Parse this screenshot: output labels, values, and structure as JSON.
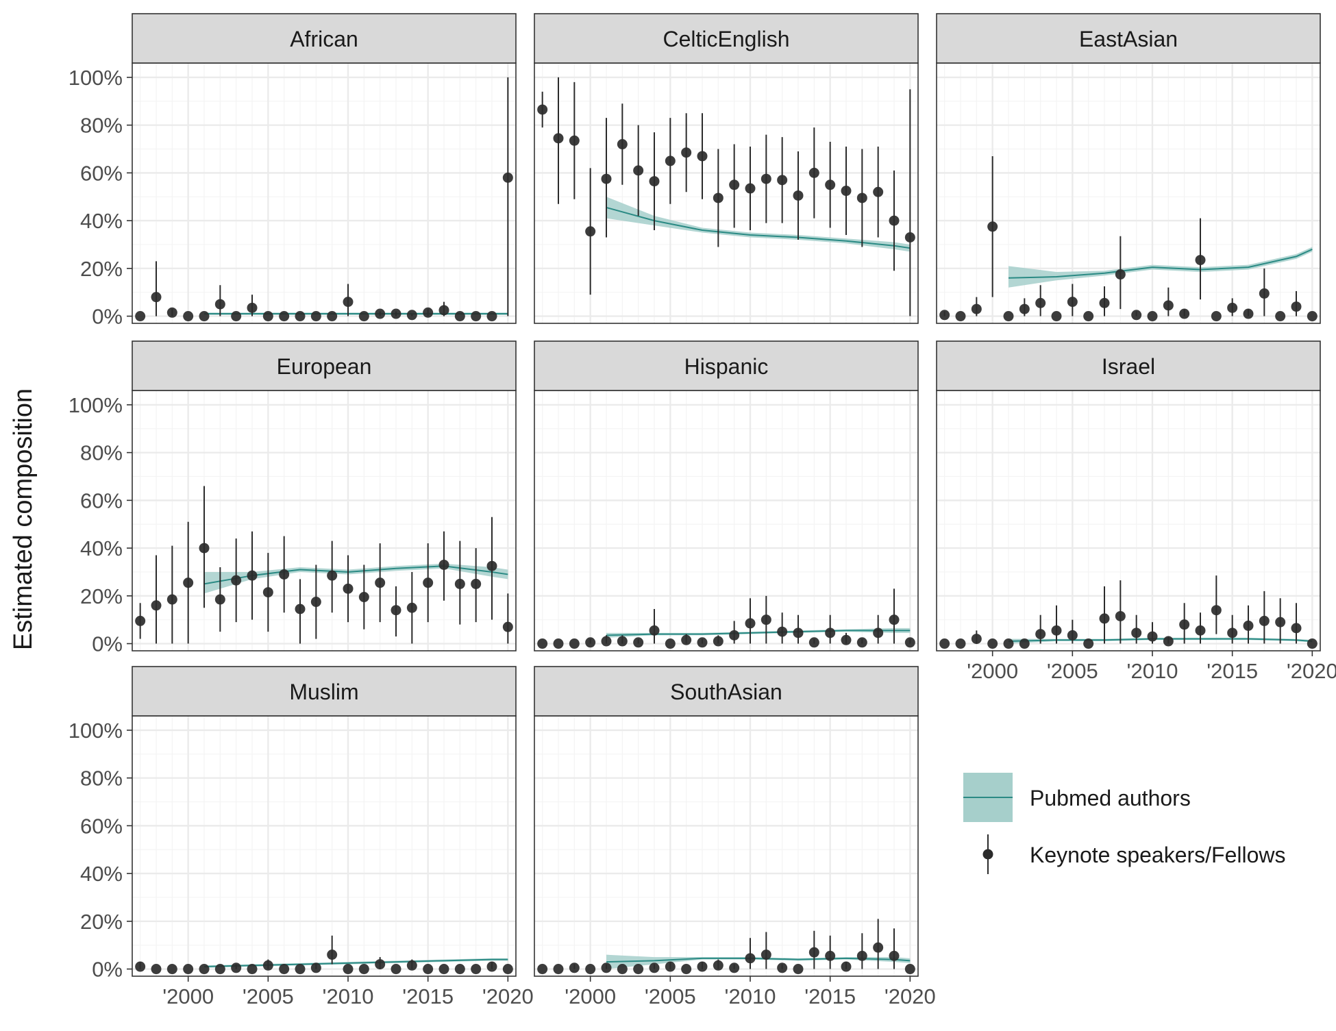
{
  "chart_data": {
    "type": "scatter",
    "ylabel": "Estimated composition",
    "xlabel": "",
    "ylim": [
      0,
      1
    ],
    "xlim": [
      1996.5,
      2020.5
    ],
    "x_ticks": [
      2000,
      2005,
      2010,
      2015,
      2020
    ],
    "x_tick_labels": [
      "'2000",
      "'2005",
      "'2010",
      "'2015",
      "'2020"
    ],
    "y_ticks": [
      0,
      0.2,
      0.4,
      0.6,
      0.8,
      1.0
    ],
    "y_tick_labels": [
      "0%",
      "20%",
      "40%",
      "60%",
      "80%",
      "100%"
    ],
    "grid": true,
    "legend": {
      "placement": "bottom-right",
      "items": [
        {
          "label": "Pubmed authors",
          "kind": "ribbon-line",
          "fill": "#a6cfcb",
          "line": "#2a8a84"
        },
        {
          "label": "Keynote speakers/Fellows",
          "kind": "point-range",
          "color": "#2b2b2b"
        }
      ]
    },
    "colors": {
      "ribbon": "#a6cfcb",
      "trend": "#2a8a84",
      "point": "#2b2b2b",
      "strip": "#d9d9d9",
      "grid": "#ebebeb",
      "border": "#333333"
    },
    "years": [
      1997,
      1998,
      1999,
      2000,
      2001,
      2002,
      2003,
      2004,
      2005,
      2006,
      2007,
      2008,
      2009,
      2010,
      2011,
      2012,
      2013,
      2014,
      2015,
      2016,
      2017,
      2018,
      2019,
      2020
    ],
    "trend_years": [
      2001,
      2004,
      2007,
      2010,
      2013,
      2016,
      2019,
      2020
    ],
    "facets": [
      {
        "name": "African",
        "points": [
          0.0,
          0.08,
          0.015,
          0.0,
          0.0,
          0.05,
          0.0,
          0.035,
          0.0,
          0.0,
          0.0,
          0.0,
          0.0,
          0.06,
          0.0,
          0.01,
          0.01,
          0.005,
          0.015,
          0.025,
          0.0,
          0.0,
          0.0,
          0.58
        ],
        "lower": [
          0.0,
          0.0,
          0.0,
          0.0,
          0.0,
          0.0,
          0.0,
          0.0,
          0.0,
          0.0,
          0.0,
          0.0,
          0.0,
          0.0,
          0.0,
          0.0,
          0.0,
          0.0,
          0.0,
          0.0,
          0.0,
          0.0,
          0.0,
          0.0
        ],
        "upper": [
          0.0,
          0.23,
          0.03,
          0.0,
          0.0,
          0.13,
          0.0,
          0.09,
          0.0,
          0.0,
          0.0,
          0.0,
          0.0,
          0.135,
          0.0,
          0.02,
          0.02,
          0.01,
          0.03,
          0.06,
          0.0,
          0.0,
          0.0,
          1.0
        ],
        "trend": [
          0.01,
          0.01,
          0.01,
          0.01,
          0.01,
          0.01,
          0.01,
          0.01
        ],
        "trend_lo": [
          0.005,
          0.005,
          0.005,
          0.005,
          0.005,
          0.005,
          0.005,
          0.005
        ],
        "trend_hi": [
          0.015,
          0.015,
          0.015,
          0.015,
          0.015,
          0.015,
          0.015,
          0.015
        ]
      },
      {
        "name": "CelticEnglish",
        "points": [
          0.865,
          0.745,
          0.735,
          0.355,
          0.575,
          0.72,
          0.61,
          0.565,
          0.65,
          0.685,
          0.67,
          0.495,
          0.55,
          0.535,
          0.575,
          0.57,
          0.505,
          0.6,
          0.55,
          0.525,
          0.495,
          0.52,
          0.4,
          0.33
        ],
        "lower": [
          0.79,
          0.47,
          0.49,
          0.09,
          0.33,
          0.55,
          0.42,
          0.36,
          0.47,
          0.52,
          0.49,
          0.29,
          0.37,
          0.36,
          0.39,
          0.39,
          0.32,
          0.41,
          0.37,
          0.34,
          0.29,
          0.33,
          0.19,
          0.0
        ],
        "upper": [
          0.94,
          1.0,
          0.98,
          0.62,
          0.83,
          0.89,
          0.8,
          0.77,
          0.83,
          0.85,
          0.85,
          0.7,
          0.72,
          0.71,
          0.76,
          0.75,
          0.69,
          0.79,
          0.73,
          0.71,
          0.7,
          0.71,
          0.61,
          0.95
        ],
        "trend": [
          0.455,
          0.4,
          0.36,
          0.34,
          0.33,
          0.315,
          0.295,
          0.285
        ],
        "trend_lo": [
          0.41,
          0.38,
          0.35,
          0.33,
          0.32,
          0.305,
          0.28,
          0.27
        ],
        "trend_hi": [
          0.5,
          0.42,
          0.37,
          0.35,
          0.34,
          0.325,
          0.31,
          0.3
        ]
      },
      {
        "name": "EastAsian",
        "points": [
          0.005,
          0.0,
          0.03,
          0.375,
          0.0,
          0.03,
          0.055,
          0.0,
          0.06,
          0.0,
          0.055,
          0.175,
          0.005,
          0.0,
          0.045,
          0.01,
          0.235,
          0.0,
          0.035,
          0.01,
          0.095,
          0.0,
          0.04,
          0.0
        ],
        "lower": [
          0.0,
          0.0,
          0.0,
          0.08,
          0.0,
          0.0,
          0.0,
          0.0,
          0.0,
          0.0,
          0.0,
          0.03,
          0.0,
          0.0,
          0.0,
          0.0,
          0.07,
          0.0,
          0.0,
          0.0,
          0.0,
          0.0,
          0.0,
          0.0
        ],
        "upper": [
          0.02,
          0.0,
          0.08,
          0.67,
          0.0,
          0.075,
          0.13,
          0.0,
          0.135,
          0.0,
          0.125,
          0.335,
          0.02,
          0.0,
          0.12,
          0.03,
          0.41,
          0.0,
          0.075,
          0.03,
          0.2,
          0.0,
          0.105,
          0.0
        ],
        "trend": [
          0.16,
          0.165,
          0.18,
          0.205,
          0.195,
          0.205,
          0.25,
          0.28
        ],
        "trend_lo": [
          0.12,
          0.15,
          0.17,
          0.195,
          0.185,
          0.195,
          0.24,
          0.27
        ],
        "trend_hi": [
          0.21,
          0.185,
          0.19,
          0.215,
          0.205,
          0.215,
          0.26,
          0.29
        ]
      },
      {
        "name": "European",
        "points": [
          0.095,
          0.16,
          0.185,
          0.255,
          0.4,
          0.185,
          0.265,
          0.285,
          0.215,
          0.29,
          0.145,
          0.175,
          0.285,
          0.23,
          0.195,
          0.255,
          0.14,
          0.15,
          0.255,
          0.33,
          0.25,
          0.25,
          0.325,
          0.07
        ],
        "lower": [
          0.02,
          0.0,
          0.0,
          0.0,
          0.15,
          0.05,
          0.09,
          0.1,
          0.05,
          0.13,
          0.0,
          0.02,
          0.13,
          0.09,
          0.06,
          0.09,
          0.03,
          0.0,
          0.09,
          0.18,
          0.08,
          0.09,
          0.1,
          0.0
        ],
        "upper": [
          0.17,
          0.37,
          0.41,
          0.51,
          0.66,
          0.32,
          0.44,
          0.47,
          0.38,
          0.45,
          0.27,
          0.33,
          0.43,
          0.37,
          0.33,
          0.42,
          0.24,
          0.3,
          0.42,
          0.47,
          0.43,
          0.4,
          0.53,
          0.21
        ],
        "trend": [
          0.25,
          0.285,
          0.31,
          0.3,
          0.315,
          0.325,
          0.3,
          0.29
        ],
        "trend_lo": [
          0.21,
          0.27,
          0.3,
          0.29,
          0.305,
          0.315,
          0.28,
          0.27
        ],
        "trend_hi": [
          0.3,
          0.3,
          0.32,
          0.31,
          0.325,
          0.335,
          0.32,
          0.31
        ]
      },
      {
        "name": "Hispanic",
        "points": [
          0.0,
          0.0,
          0.0,
          0.005,
          0.01,
          0.01,
          0.005,
          0.055,
          0.0,
          0.015,
          0.005,
          0.01,
          0.035,
          0.085,
          0.1,
          0.05,
          0.045,
          0.005,
          0.045,
          0.015,
          0.005,
          0.045,
          0.1,
          0.005
        ],
        "lower": [
          0.0,
          0.0,
          0.0,
          0.0,
          0.0,
          0.0,
          0.0,
          0.0,
          0.0,
          0.0,
          0.0,
          0.0,
          0.0,
          0.0,
          0.0,
          0.0,
          0.0,
          0.0,
          0.0,
          0.0,
          0.0,
          0.0,
          0.0,
          0.0
        ],
        "upper": [
          0.0,
          0.0,
          0.0,
          0.02,
          0.035,
          0.035,
          0.02,
          0.145,
          0.0,
          0.04,
          0.02,
          0.035,
          0.095,
          0.19,
          0.2,
          0.13,
          0.12,
          0.02,
          0.12,
          0.045,
          0.02,
          0.12,
          0.23,
          0.02
        ],
        "trend": [
          0.035,
          0.04,
          0.04,
          0.045,
          0.05,
          0.055,
          0.055,
          0.055
        ],
        "trend_lo": [
          0.025,
          0.035,
          0.035,
          0.04,
          0.045,
          0.05,
          0.045,
          0.045
        ],
        "trend_hi": [
          0.045,
          0.045,
          0.045,
          0.05,
          0.055,
          0.06,
          0.065,
          0.065
        ]
      },
      {
        "name": "Israel",
        "points": [
          0.0,
          0.0,
          0.02,
          0.0,
          0.0,
          0.0,
          0.04,
          0.055,
          0.035,
          0.0,
          0.105,
          0.115,
          0.045,
          0.03,
          0.01,
          0.08,
          0.055,
          0.14,
          0.045,
          0.075,
          0.095,
          0.09,
          0.065,
          0.0
        ],
        "lower": [
          0.0,
          0.0,
          0.0,
          0.0,
          0.0,
          0.0,
          0.0,
          0.0,
          0.0,
          0.0,
          0.0,
          0.0,
          0.0,
          0.0,
          0.0,
          0.0,
          0.0,
          0.04,
          0.0,
          0.0,
          0.0,
          0.0,
          0.0,
          0.0
        ],
        "upper": [
          0.0,
          0.0,
          0.055,
          0.0,
          0.0,
          0.0,
          0.12,
          0.16,
          0.1,
          0.0,
          0.24,
          0.265,
          0.12,
          0.09,
          0.03,
          0.17,
          0.13,
          0.285,
          0.12,
          0.16,
          0.22,
          0.19,
          0.17,
          0.0
        ],
        "trend": [
          0.01,
          0.015,
          0.015,
          0.02,
          0.02,
          0.02,
          0.015,
          0.01
        ],
        "trend_lo": [
          0.0,
          0.01,
          0.01,
          0.015,
          0.015,
          0.015,
          0.01,
          0.005
        ],
        "trend_hi": [
          0.02,
          0.02,
          0.02,
          0.025,
          0.025,
          0.025,
          0.02,
          0.015
        ]
      },
      {
        "name": "Muslim",
        "points": [
          0.01,
          0.0,
          0.0,
          0.0,
          0.0,
          0.0,
          0.005,
          0.0,
          0.015,
          0.0,
          0.0,
          0.005,
          0.06,
          0.0,
          0.0,
          0.02,
          0.0,
          0.015,
          0.0,
          0.0,
          0.0,
          0.0,
          0.01,
          0.0
        ],
        "lower": [
          0.0,
          0.0,
          0.0,
          0.0,
          0.0,
          0.0,
          0.0,
          0.0,
          0.0,
          0.0,
          0.0,
          0.0,
          0.02,
          0.0,
          0.0,
          0.0,
          0.0,
          0.0,
          0.0,
          0.0,
          0.0,
          0.0,
          0.0,
          0.0
        ],
        "upper": [
          0.03,
          0.0,
          0.0,
          0.0,
          0.0,
          0.0,
          0.02,
          0.0,
          0.04,
          0.0,
          0.0,
          0.02,
          0.14,
          0.0,
          0.0,
          0.05,
          0.0,
          0.04,
          0.0,
          0.0,
          0.0,
          0.0,
          0.03,
          0.0
        ],
        "trend": [
          0.01,
          0.015,
          0.02,
          0.025,
          0.03,
          0.035,
          0.04,
          0.04
        ],
        "trend_lo": [
          0.005,
          0.01,
          0.015,
          0.02,
          0.025,
          0.03,
          0.035,
          0.035
        ],
        "trend_hi": [
          0.015,
          0.02,
          0.025,
          0.03,
          0.035,
          0.04,
          0.045,
          0.045
        ]
      },
      {
        "name": "SouthAsian",
        "points": [
          0.0,
          0.0,
          0.005,
          0.0,
          0.005,
          0.0,
          0.0,
          0.005,
          0.01,
          0.0,
          0.01,
          0.015,
          0.005,
          0.045,
          0.06,
          0.005,
          0.0,
          0.07,
          0.055,
          0.01,
          0.055,
          0.09,
          0.055,
          0.0
        ],
        "lower": [
          0.0,
          0.0,
          0.0,
          0.0,
          0.0,
          0.0,
          0.0,
          0.0,
          0.0,
          0.0,
          0.0,
          0.0,
          0.0,
          0.0,
          0.0,
          0.0,
          0.0,
          0.0,
          0.0,
          0.0,
          0.0,
          0.0,
          0.0,
          0.0
        ],
        "upper": [
          0.0,
          0.0,
          0.02,
          0.0,
          0.02,
          0.0,
          0.0,
          0.02,
          0.03,
          0.0,
          0.03,
          0.04,
          0.02,
          0.13,
          0.155,
          0.02,
          0.0,
          0.16,
          0.14,
          0.03,
          0.15,
          0.21,
          0.17,
          0.0
        ],
        "trend": [
          0.03,
          0.035,
          0.045,
          0.045,
          0.04,
          0.045,
          0.04,
          0.035
        ],
        "trend_lo": [
          0.0,
          0.02,
          0.04,
          0.04,
          0.035,
          0.04,
          0.03,
          0.025
        ],
        "trend_hi": [
          0.06,
          0.05,
          0.05,
          0.05,
          0.045,
          0.05,
          0.05,
          0.045
        ]
      }
    ]
  }
}
